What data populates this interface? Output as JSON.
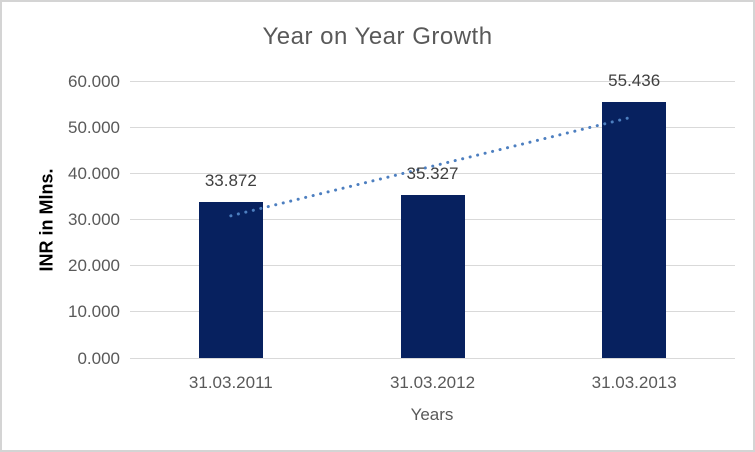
{
  "window": {
    "background": "#ffffff",
    "border_color": "#d4d4d4"
  },
  "chart_data": {
    "type": "bar",
    "title": "Year on Year Growth",
    "categories": [
      "31.03.2011",
      "31.03.2012",
      "31.03.2013"
    ],
    "values": [
      33.872,
      35.327,
      55.436
    ],
    "data_labels": [
      "33.872",
      "35.327",
      "55.436"
    ],
    "xlabel": "Years",
    "ylabel": "INR in Mlns.",
    "ylim": [
      0,
      60
    ],
    "yticks": [
      0,
      10,
      20,
      30,
      40,
      50,
      60
    ],
    "ytick_labels": [
      "0.000",
      "10.000",
      "20.000",
      "30.000",
      "40.000",
      "50.000",
      "60.000"
    ],
    "grid": true,
    "legend": false,
    "bar_color": "#07215f",
    "label_color": "#3f3f3f",
    "axis_text_color": "#595959",
    "gridline_color": "#d9d9d9",
    "title_color": "#595959",
    "trendline": {
      "style": "dotted",
      "color": "#4d7fc0",
      "start_value": 30.8,
      "end_value": 52.3
    }
  }
}
